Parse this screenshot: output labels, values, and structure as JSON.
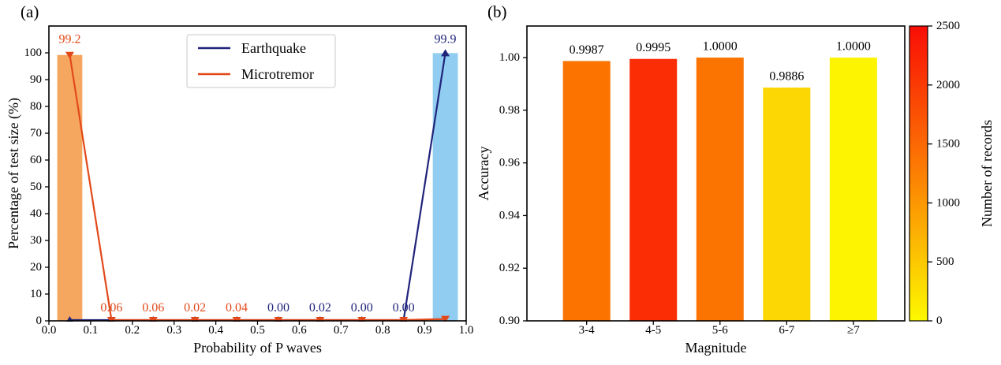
{
  "figure": {
    "background": "#ffffff",
    "text_color": "#000000"
  },
  "panels": {
    "a": {
      "tag": "(a)"
    },
    "b": {
      "tag": "(b)"
    }
  },
  "chart_data": [
    {
      "id": "a",
      "type": "bar+line",
      "xlabel": "Probability of P waves",
      "ylabel": "Percentage of test size (%)",
      "xlim": [
        0.0,
        1.0
      ],
      "ylim": [
        0,
        110
      ],
      "xticks": [
        0.0,
        0.1,
        0.2,
        0.3,
        0.4,
        0.5,
        0.6,
        0.7,
        0.8,
        0.9,
        1.0
      ],
      "xtick_labels": [
        "0.0",
        "0.1",
        "0.2",
        "0.3",
        "0.4",
        "0.5",
        "0.6",
        "0.7",
        "0.8",
        "0.9",
        "1.0"
      ],
      "yticks": [
        0,
        10,
        20,
        30,
        40,
        50,
        60,
        70,
        80,
        90,
        100
      ],
      "ytick_labels": [
        "0",
        "10",
        "20",
        "30",
        "40",
        "50",
        "60",
        "70",
        "80",
        "90",
        "100"
      ],
      "grid": false,
      "legend": {
        "position": "upper center-left",
        "entries": [
          {
            "label": "Earthquake",
            "color": "#20247a"
          },
          {
            "label": "Microtremor",
            "color": "#e2491a"
          }
        ]
      },
      "bars": [
        {
          "x": 0.05,
          "width": 0.06,
          "value": 99.2,
          "color": "#f6a75f",
          "series": "Microtremor"
        },
        {
          "x": 0.95,
          "width": 0.06,
          "value": 99.9,
          "color": "#90cdf0",
          "series": "Earthquake"
        }
      ],
      "x": [
        0.05,
        0.15,
        0.25,
        0.35,
        0.45,
        0.55,
        0.65,
        0.75,
        0.85,
        0.95
      ],
      "series": [
        {
          "name": "Earthquake",
          "color": "#20247a",
          "marker": "triangle-up",
          "y": [
            0,
            0,
            0,
            0,
            0,
            0.0,
            0.02,
            0.0,
            0.0,
            99.9
          ]
        },
        {
          "name": "Microtremor",
          "color": "#e2491a",
          "marker": "triangle-down",
          "y": [
            99.2,
            0.06,
            0.06,
            0.02,
            0.04,
            0.06,
            0.06,
            0.06,
            0.06,
            0.7
          ]
        }
      ],
      "annotations": [
        {
          "x": 0.05,
          "y": 105,
          "text": "99.2",
          "series": "Microtremor"
        },
        {
          "x": 0.15,
          "y": 4.8,
          "text": "0.06",
          "series": "Microtremor"
        },
        {
          "x": 0.25,
          "y": 4.8,
          "text": "0.06",
          "series": "Microtremor"
        },
        {
          "x": 0.35,
          "y": 4.8,
          "text": "0.02",
          "series": "Microtremor"
        },
        {
          "x": 0.45,
          "y": 4.8,
          "text": "0.04",
          "series": "Microtremor"
        },
        {
          "x": 0.55,
          "y": 4.8,
          "text": "0.00",
          "series": "Earthquake"
        },
        {
          "x": 0.65,
          "y": 4.8,
          "text": "0.02",
          "series": "Earthquake"
        },
        {
          "x": 0.75,
          "y": 4.8,
          "text": "0.00",
          "series": "Earthquake"
        },
        {
          "x": 0.85,
          "y": 4.8,
          "text": "0.00",
          "series": "Earthquake"
        },
        {
          "x": 0.95,
          "y": 105,
          "text": "99.9",
          "series": "Earthquake"
        }
      ]
    },
    {
      "id": "b",
      "type": "bar",
      "xlabel": "Magnitude",
      "ylabel": "Accuracy",
      "categories": [
        "3-4",
        "4-5",
        "5-6",
        "6-7",
        "≥7"
      ],
      "values": [
        0.9987,
        0.9995,
        1.0,
        0.9886,
        1.0
      ],
      "value_labels": [
        "0.9987",
        "0.9995",
        "1.0000",
        "0.9886",
        "1.0000"
      ],
      "bar_colors": [
        "#fc7300",
        "#fa2d05",
        "#fb7301",
        "#fcd703",
        "#fdf402"
      ],
      "ylim": [
        0.9,
        1.012
      ],
      "yticks": [
        0.9,
        0.92,
        0.94,
        0.96,
        0.98,
        1.0
      ],
      "ytick_labels": [
        "0.90",
        "0.92",
        "0.94",
        "0.96",
        "0.98",
        "1.00"
      ],
      "grid": false,
      "colorbar": {
        "label": "Number of records",
        "orientation": "vertical",
        "range": [
          0,
          2500
        ],
        "ticks": [
          0,
          500,
          1000,
          1500,
          2000,
          2500
        ],
        "tick_labels": [
          "0",
          "500",
          "1000",
          "1500",
          "2000",
          "2500"
        ],
        "gradient_bottom_to_top": [
          "#fdf900",
          "#fc7f03",
          "#f90d05"
        ]
      }
    }
  ]
}
